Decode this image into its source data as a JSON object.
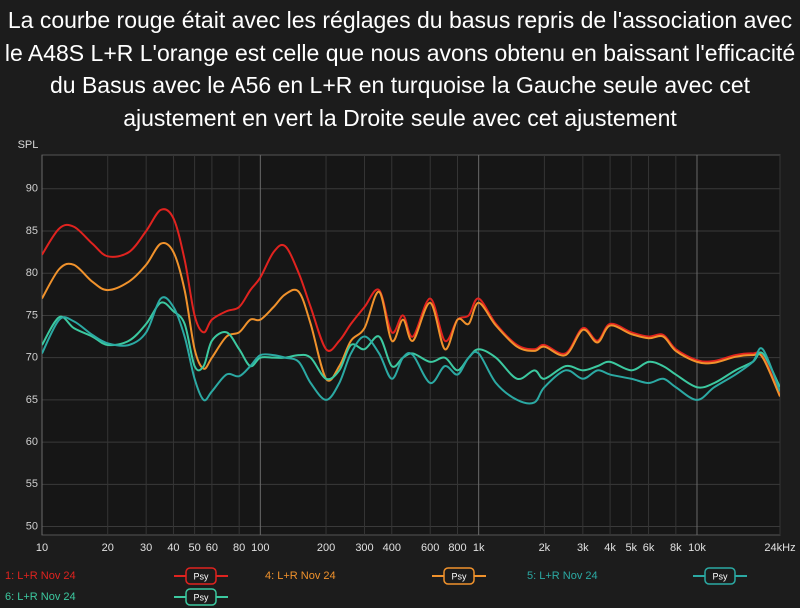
{
  "chart_data": {
    "type": "line",
    "title": "La courbe rouge était avec les réglages du basus repris de l'association avec le A48S L+R L'orange est celle que nous avons obtenu en baissant l'efficacité du Basus avec le A56 en L+R en turquoise la Gauche seule avec cet ajustement en vert la Droite seule avec cet ajustement",
    "y_label": "SPL",
    "x_scale": "log",
    "grid": true,
    "xlim": [
      10,
      24000
    ],
    "ylim": [
      49,
      94
    ],
    "xticks": [
      10,
      20,
      30,
      40,
      50,
      60,
      80,
      100,
      200,
      300,
      400,
      600,
      800,
      {
        "value": 1000,
        "label": "1k"
      },
      {
        "value": 2000,
        "label": "2k"
      },
      {
        "value": 3000,
        "label": "3k"
      },
      {
        "value": 4000,
        "label": "4k"
      },
      {
        "value": 5000,
        "label": "5k"
      },
      {
        "value": 6000,
        "label": "6k"
      },
      {
        "value": 8000,
        "label": "8k"
      },
      {
        "value": 10000,
        "label": "10k"
      },
      {
        "value": 24000,
        "label": "24kHz"
      }
    ],
    "yticks": [
      50,
      55,
      60,
      65,
      70,
      75,
      80,
      85,
      90
    ],
    "x": [
      10,
      12,
      14,
      17,
      20,
      25,
      30,
      35,
      40,
      45,
      50,
      55,
      60,
      70,
      80,
      90,
      100,
      115,
      130,
      150,
      170,
      200,
      230,
      260,
      300,
      350,
      400,
      450,
      500,
      600,
      700,
      800,
      900,
      1000,
      1200,
      1500,
      1800,
      2000,
      2500,
      3000,
      3500,
      4000,
      5000,
      6000,
      7000,
      8000,
      10000,
      12000,
      15000,
      18000,
      20000,
      24000
    ],
    "series": [
      {
        "name": "1: L+R Nov 24",
        "button": "Psy",
        "color": "#e0231f",
        "values": [
          82.2,
          85.3,
          85.5,
          83.5,
          82.0,
          82.5,
          85.0,
          87.5,
          86.5,
          81.6,
          75.0,
          73.0,
          74.5,
          75.5,
          76.0,
          78.0,
          79.5,
          82.5,
          83.2,
          80.0,
          76.0,
          71.0,
          72.0,
          74.0,
          76.0,
          78.0,
          73.0,
          75.0,
          72.5,
          77.0,
          72.0,
          74.5,
          75.0,
          77.0,
          74.0,
          71.5,
          71.0,
          71.5,
          70.5,
          73.5,
          72.0,
          74.0,
          73.0,
          72.5,
          72.7,
          71.0,
          69.7,
          69.6,
          70.3,
          70.5,
          70.2,
          65.6
        ]
      },
      {
        "name": "4: L+R Nov 24",
        "button": "Psy",
        "color": "#f0922c",
        "values": [
          77.0,
          80.5,
          81.0,
          79.0,
          78.0,
          79.0,
          81.0,
          83.5,
          82.5,
          78.0,
          71.0,
          68.7,
          70.0,
          72.5,
          73.0,
          74.5,
          74.5,
          76.0,
          77.5,
          77.8,
          74.0,
          67.5,
          69.0,
          72.0,
          73.5,
          77.8,
          72.0,
          74.5,
          72.0,
          76.5,
          71.0,
          74.5,
          74.0,
          76.5,
          73.8,
          71.3,
          70.8,
          71.3,
          70.3,
          73.3,
          71.8,
          73.8,
          72.8,
          72.3,
          72.5,
          70.8,
          69.5,
          69.4,
          70.1,
          70.3,
          70.0,
          65.4
        ]
      },
      {
        "name": "5: L+R Nov 24",
        "button": "Psy",
        "color": "#2ba9a3",
        "values": [
          70.5,
          74.5,
          74.3,
          72.7,
          71.7,
          71.5,
          73.0,
          77.0,
          76.0,
          72.5,
          67.5,
          65.0,
          66.0,
          68.0,
          67.8,
          69.0,
          70.3,
          70.3,
          70.0,
          69.5,
          67.0,
          65.0,
          67.0,
          70.5,
          72.5,
          70.5,
          67.5,
          70.0,
          70.3,
          67.0,
          69.0,
          68.0,
          70.0,
          70.5,
          67.0,
          65.0,
          64.7,
          66.5,
          68.5,
          67.5,
          68.5,
          68.0,
          67.5,
          67.0,
          67.5,
          66.5,
          65.0,
          66.5,
          68.0,
          69.5,
          71.0,
          66.0
        ]
      },
      {
        "name": "6: L+R Nov 24",
        "button": "Psy",
        "color": "#3cc9a0",
        "values": [
          71.5,
          74.8,
          73.5,
          72.5,
          71.5,
          72.0,
          74.0,
          76.5,
          75.5,
          74.0,
          69.0,
          69.0,
          72.0,
          73.0,
          71.0,
          69.0,
          70.0,
          70.0,
          70.0,
          70.3,
          70.0,
          67.5,
          68.5,
          71.5,
          71.0,
          72.5,
          69.0,
          70.0,
          70.5,
          69.5,
          70.0,
          68.5,
          70.0,
          71.0,
          70.0,
          67.5,
          68.5,
          67.5,
          69.0,
          68.5,
          69.0,
          69.5,
          68.5,
          69.5,
          69.0,
          68.0,
          66.5,
          67.0,
          68.5,
          69.5,
          70.5,
          66.5
        ]
      }
    ]
  }
}
